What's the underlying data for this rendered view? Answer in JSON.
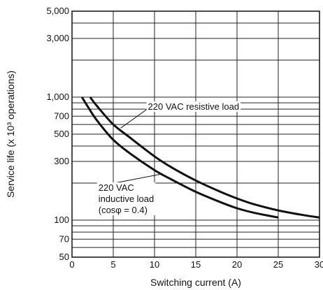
{
  "chart_data": {
    "type": "line",
    "title": "",
    "xlabel": "Switching current (A)",
    "ylabel": "Service life (x 10³ operations)",
    "x_scale": "linear",
    "y_scale": "log",
    "xlim": [
      0,
      30
    ],
    "ylim": [
      50,
      5000
    ],
    "grid": true,
    "x_ticks": [
      "0",
      "5",
      "10",
      "15",
      "20",
      "25",
      "30"
    ],
    "x_tick_values": [
      0,
      5,
      10,
      15,
      20,
      25,
      30
    ],
    "y_ticks": [
      "5,000",
      "3,000",
      "1,000",
      "700",
      "500",
      "300",
      "100",
      "70",
      "50"
    ],
    "y_tick_values": [
      5000,
      3000,
      1000,
      700,
      500,
      300,
      100,
      70,
      50
    ],
    "y_gridlines": [
      5000,
      4000,
      3000,
      2000,
      1000,
      900,
      800,
      700,
      600,
      500,
      400,
      300,
      200,
      100,
      90,
      80,
      70,
      60,
      50
    ],
    "series": [
      {
        "name": "220 VAC resistive load",
        "x": [
          2.2,
          3,
          5,
          7,
          10,
          12,
          15,
          18,
          20,
          22,
          25,
          28,
          30
        ],
        "y": [
          1000,
          850,
          600,
          470,
          330,
          270,
          210,
          170,
          150,
          135,
          120,
          110,
          105
        ]
      },
      {
        "name": "220 VAC inductive load (cosφ = 0.4)",
        "x": [
          1.2,
          2,
          3,
          5,
          7,
          10,
          12,
          15,
          18,
          20,
          22,
          25
        ],
        "y": [
          1000,
          820,
          650,
          450,
          350,
          255,
          215,
          170,
          140,
          125,
          115,
          105
        ]
      }
    ],
    "annotations": {
      "resistive": "220 VAC resistive load",
      "inductive_line1": "220 VAC",
      "inductive_line2": "inductive load",
      "inductive_line3": "(cosφ  = 0.4)"
    }
  }
}
